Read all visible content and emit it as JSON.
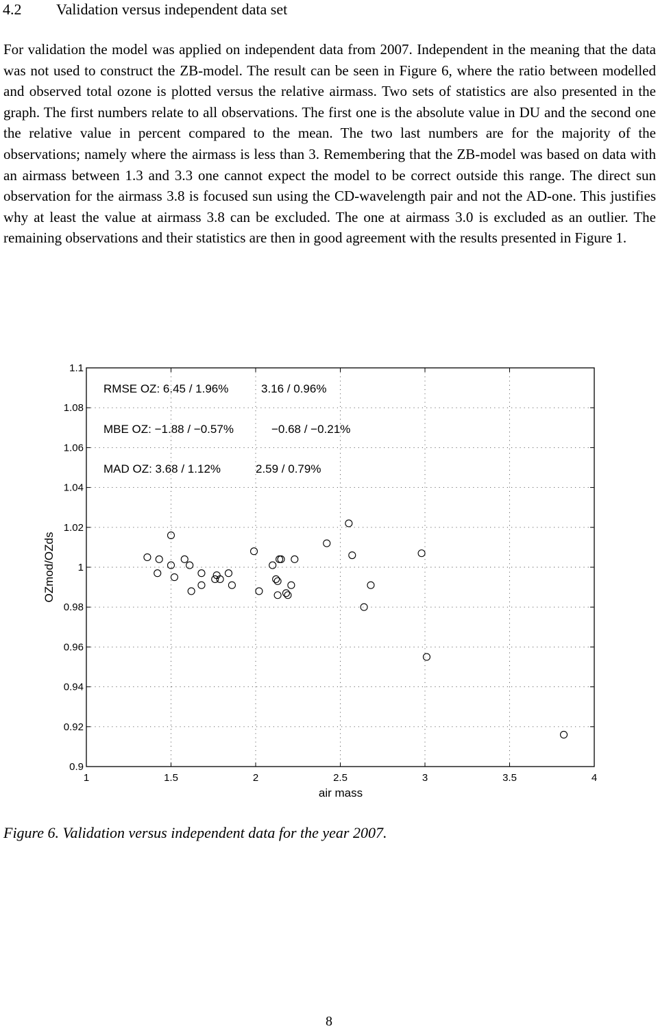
{
  "section": {
    "number": "4.2",
    "title": "Validation versus independent data set"
  },
  "body_text": "For validation the model was applied on independent data from 2007. Independent in the meaning that the data was not used to construct the ZB-model. The result can be seen in Figure 6, where the ratio between modelled and observed total ozone is plotted versus the relative airmass. Two sets of statistics are also presented in the graph. The first numbers relate to all observations. The first one is the absolute value in DU and the second one the relative value in percent compared to the mean. The two last numbers are for the majority of the observations; namely where the airmass is less than 3. Remembering that the ZB-model was based on data with an airmass between 1.3 and 3.3 one cannot expect the model to be correct outside this range. The direct sun observation for the airmass 3.8 is focused sun using the CD-wavelength pair and not the AD-one. This justifies why at least the value at airmass 3.8 can be excluded. The one at airmass 3.0 is excluded as an outlier. The remaining observations and their statistics are then in good agreement with the results presented in Figure 1.",
  "figure": {
    "caption": "Figure 6. Validation versus independent data for the year 2007.",
    "annotations": [
      "RMSE OZ: 6.45 / 1.96%",
      "3.16 / 0.96%",
      "MBE OZ: −1.88 / −0.57%",
      "−0.68 / −0.21%",
      "MAD OZ: 3.68 / 1.12%",
      "2.59 / 0.79%"
    ]
  },
  "chart_data": {
    "type": "scatter",
    "xlabel": "air mass",
    "ylabel": "OZmod/OZds",
    "xlim": [
      1,
      4
    ],
    "ylim": [
      0.9,
      1.1
    ],
    "xticks": [
      "1",
      "1.5",
      "2",
      "2.5",
      "3",
      "3.5",
      "4"
    ],
    "yticks": [
      "0.9",
      "0.92",
      "0.94",
      "0.96",
      "0.98",
      "1",
      "1.02",
      "1.04",
      "1.06",
      "1.08",
      "1.1"
    ],
    "grid": true,
    "marker": "open-circle",
    "points": [
      {
        "x": 1.36,
        "y": 1.005
      },
      {
        "x": 1.42,
        "y": 0.997
      },
      {
        "x": 1.43,
        "y": 1.004
      },
      {
        "x": 1.5,
        "y": 1.016
      },
      {
        "x": 1.5,
        "y": 1.001
      },
      {
        "x": 1.52,
        "y": 0.995
      },
      {
        "x": 1.58,
        "y": 1.004
      },
      {
        "x": 1.61,
        "y": 1.001
      },
      {
        "x": 1.62,
        "y": 0.988
      },
      {
        "x": 1.68,
        "y": 0.991
      },
      {
        "x": 1.68,
        "y": 0.997
      },
      {
        "x": 1.76,
        "y": 0.994
      },
      {
        "x": 1.77,
        "y": 0.996
      },
      {
        "x": 1.79,
        "y": 0.994
      },
      {
        "x": 1.84,
        "y": 0.997
      },
      {
        "x": 1.86,
        "y": 0.991
      },
      {
        "x": 1.99,
        "y": 1.008
      },
      {
        "x": 2.02,
        "y": 0.988
      },
      {
        "x": 2.1,
        "y": 1.001
      },
      {
        "x": 2.12,
        "y": 0.994
      },
      {
        "x": 2.13,
        "y": 0.993
      },
      {
        "x": 2.13,
        "y": 0.986
      },
      {
        "x": 2.14,
        "y": 1.004
      },
      {
        "x": 2.15,
        "y": 1.004
      },
      {
        "x": 2.18,
        "y": 0.987
      },
      {
        "x": 2.19,
        "y": 0.986
      },
      {
        "x": 2.21,
        "y": 0.991
      },
      {
        "x": 2.23,
        "y": 1.004
      },
      {
        "x": 2.42,
        "y": 1.012
      },
      {
        "x": 2.55,
        "y": 1.022
      },
      {
        "x": 2.57,
        "y": 1.006
      },
      {
        "x": 2.64,
        "y": 0.98
      },
      {
        "x": 2.68,
        "y": 0.991
      },
      {
        "x": 2.98,
        "y": 1.007
      },
      {
        "x": 3.01,
        "y": 0.955
      },
      {
        "x": 3.82,
        "y": 0.916
      }
    ]
  },
  "page_number": "8"
}
